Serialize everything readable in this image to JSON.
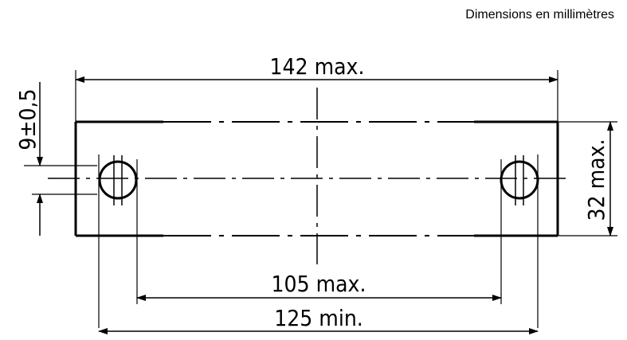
{
  "units_note": "Dimensions en millimètres",
  "dimensions": {
    "overall_length": "142 max.",
    "hole_spacing_inner": "105 max.",
    "hole_spacing_outer": "125 min.",
    "height": "32 max.",
    "hole_offset": "9±0,5"
  },
  "colors": {
    "line": "#000000",
    "background": "#ffffff"
  }
}
